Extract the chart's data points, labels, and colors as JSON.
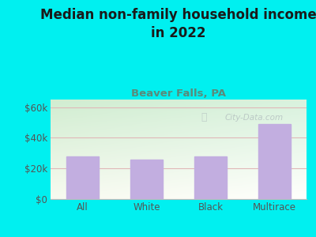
{
  "title": "Median non-family household income\nin 2022",
  "subtitle": "Beaver Falls, PA",
  "categories": [
    "All",
    "White",
    "Black",
    "Multirace"
  ],
  "values": [
    28000,
    26000,
    28000,
    49000
  ],
  "bar_color": "#c2aee0",
  "background_color": "#00f0f0",
  "title_color": "#1a1a1a",
  "subtitle_color": "#5a8a7a",
  "tick_color": "#555555",
  "grid_color": "#e0b8b8",
  "ylim": [
    0,
    65000
  ],
  "yticks": [
    0,
    20000,
    40000,
    60000
  ],
  "ytick_labels": [
    "$0",
    "$20k",
    "$40k",
    "$60k"
  ],
  "watermark": "City-Data.com",
  "title_fontsize": 12,
  "subtitle_fontsize": 9.5,
  "tick_fontsize": 8.5
}
